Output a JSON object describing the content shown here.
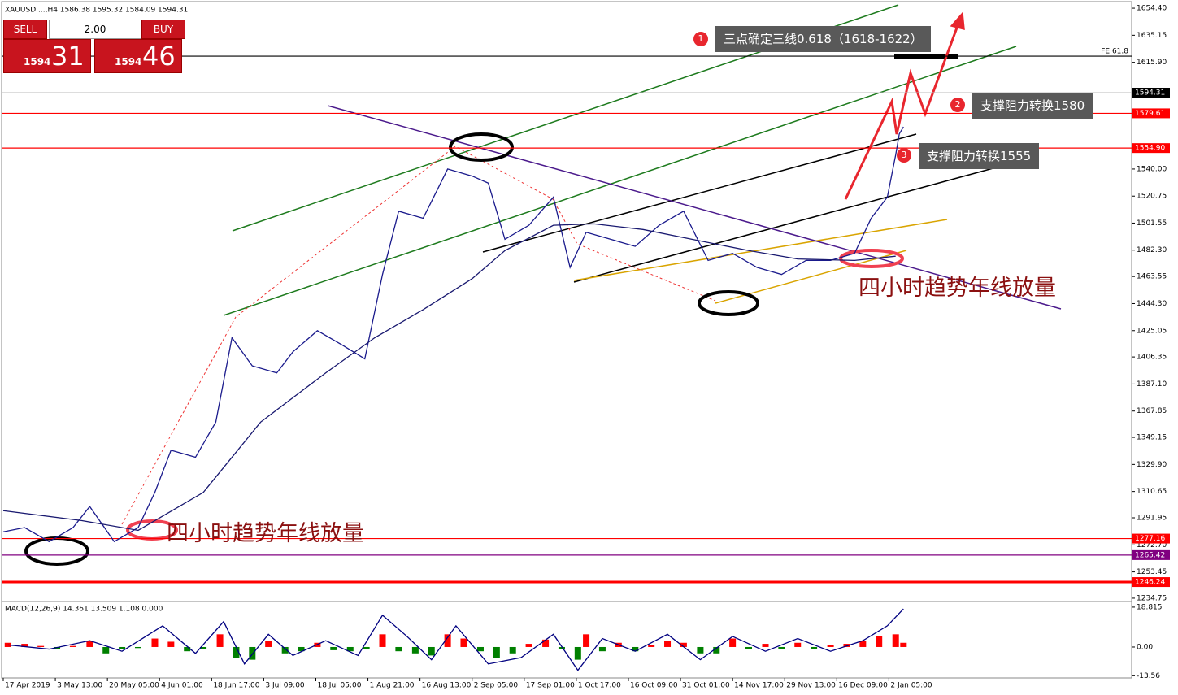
{
  "trade_panel": {
    "sell": "SELL",
    "buy": "BUY",
    "lot": "2.00",
    "bid_big": "1594",
    "bid_small": "31",
    "ask_big": "1594",
    "ask_small": "46"
  },
  "annotations": [
    {
      "number": "1",
      "text": "三点确定三线0.618（1618-1622）"
    },
    {
      "number": "2",
      "text": "支撑阻力转换1580"
    },
    {
      "number": "3",
      "text": "支撑阻力转换1555"
    }
  ],
  "labels": [
    "四小时趋势年线放量",
    "四小时趋势年线放量"
  ],
  "chart_data": [
    {
      "type": "line",
      "title": "XAUUSD....,H4  1586.38 1595.32 1584.09 1594.31",
      "xlim": [
        0,
        21.66
      ],
      "ylim": [
        1232.4,
        1657.9
      ],
      "xticks": [
        {
          "value": 0,
          "label": "17 Apr 2019"
        },
        {
          "value": 1,
          "label": "3 May 13:00"
        },
        {
          "value": 2,
          "label": "20 May 05:00"
        },
        {
          "value": 3,
          "label": "4 Jun 01:00"
        },
        {
          "value": 4,
          "label": "18 Jun 17:00"
        },
        {
          "value": 5,
          "label": "3 Jul 09:00"
        },
        {
          "value": 6,
          "label": "18 Jul 05:00"
        },
        {
          "value": 7,
          "label": "1 Aug 21:00"
        },
        {
          "value": 8,
          "label": "16 Aug 13:00"
        },
        {
          "value": 9,
          "label": "2 Sep 05:00"
        },
        {
          "value": 10,
          "label": "17 Sep 01:00"
        },
        {
          "value": 11,
          "label": "1 Oct 17:00"
        },
        {
          "value": 12,
          "label": "16 Oct 09:00"
        },
        {
          "value": 13,
          "label": "31 Oct 01:00"
        },
        {
          "value": 14,
          "label": "14 Nov 17:00"
        },
        {
          "value": 15,
          "label": "29 Nov 13:00"
        },
        {
          "value": 16,
          "label": "16 Dec 09:00"
        },
        {
          "value": 17,
          "label": "2 Jan 05:00"
        }
      ],
      "yticks": [
        {
          "value": 1654.4,
          "label": "1654.40"
        },
        1635.15,
        {
          "value": 1615.9,
          "label": "1615.90"
        },
        {
          "value": 1540,
          "label": "1540.00"
        },
        1520.75,
        1501.55,
        {
          "value": 1482.3,
          "label": "1482.30"
        },
        1463.55,
        {
          "value": 1444.3,
          "label": "1444.30"
        },
        1425.05,
        1406.35,
        {
          "value": 1387.1,
          "label": "1387.10"
        },
        1367.85,
        1349.15,
        {
          "value": 1329.9,
          "label": "1329.90"
        },
        1310.65,
        1291.95,
        {
          "value": 1272.7,
          "label": "1272.70"
        },
        1253.45,
        1234.75
      ],
      "series": [
        {
          "name": "XAUUSD",
          "color": "#1a1a8c",
          "x": [
            0,
            0.41,
            0.88,
            1.34,
            1.66,
            2.13,
            2.59,
            2.91,
            3.22,
            3.69,
            4.08,
            4.39,
            4.78,
            5.25,
            5.56,
            6.03,
            6.5,
            6.94,
            7.28,
            7.59,
            8.06,
            8.53,
            9,
            9.31,
            9.63,
            10.09,
            10.56,
            10.88,
            11.19,
            11.66,
            12.13,
            12.59,
            13.06,
            13.53,
            14,
            14.47,
            14.94,
            15.41,
            15.88,
            16.34,
            16.66,
            16.97,
            17.13,
            17.2,
            17.28
          ],
          "values": [
            1282,
            1285,
            1275,
            1285,
            1300,
            1275,
            1285,
            1310,
            1340,
            1335,
            1360,
            1420,
            1400,
            1395,
            1410,
            1425,
            1415,
            1405,
            1465,
            1510,
            1505,
            1540,
            1535,
            1530,
            1490,
            1500,
            1520,
            1470,
            1495,
            1490,
            1485,
            1500,
            1510,
            1475,
            1480,
            1470,
            1465,
            1475,
            1475,
            1480,
            1505,
            1520,
            1550,
            1565,
            1570
          ]
        },
        {
          "name": "MA",
          "color": "#191970",
          "x": [
            0,
            1.5,
            2.59,
            3.84,
            4.94,
            6.19,
            7.13,
            8.06,
            9,
            9.63,
            10.56,
            11.34,
            12.28,
            13.22,
            14.31,
            15.25,
            16.34,
            17.13
          ],
          "values": [
            1297,
            1290,
            1283,
            1310,
            1360,
            1395,
            1420,
            1440,
            1462,
            1482,
            1500,
            1501,
            1497,
            1490,
            1482,
            1476,
            1475,
            1478
          ]
        }
      ],
      "current_price": 1594.31,
      "levels": [
        {
          "value": 1579.61,
          "color": "#ff0000"
        },
        {
          "value": 1554.9,
          "label": "1554.90",
          "color": "#ff0000"
        },
        {
          "value": 1277.16,
          "color": "#ff0000"
        },
        {
          "value": 1265.42,
          "color": "#800080"
        },
        {
          "value": 1246.24,
          "color": "#ff0000"
        },
        {
          "value": 1620.3,
          "label": "FE 61.8",
          "color": "#000000"
        }
      ]
    },
    {
      "type": "bar",
      "title": "MACD(12,26,9) 14.361 13.509 1.108 0.000",
      "xlim": [
        0,
        21.66
      ],
      "ylim": [
        -14.2,
        20.7
      ],
      "yticks": [
        18.815,
        {
          "value": 0,
          "label": "0.00"
        },
        -13.56
      ],
      "color": "#ff0000",
      "negative_color": "#008000",
      "x": [
        0.09,
        0.41,
        0.72,
        1.03,
        1.34,
        1.66,
        1.97,
        2.28,
        2.59,
        2.91,
        3.22,
        3.53,
        3.84,
        4.16,
        4.47,
        4.78,
        5.09,
        5.41,
        5.72,
        6.03,
        6.34,
        6.66,
        6.97,
        7.28,
        7.59,
        7.91,
        8.22,
        8.53,
        8.84,
        9.16,
        9.47,
        9.78,
        10.09,
        10.41,
        10.72,
        11.03,
        11.19,
        11.5,
        11.81,
        12.13,
        12.44,
        12.75,
        13.06,
        13.38,
        13.69,
        14,
        14.31,
        14.63,
        14.94,
        15.25,
        15.56,
        15.88,
        16.19,
        16.5,
        16.81,
        17.13,
        17.28
      ],
      "values": [
        2,
        1.5,
        0.5,
        -1,
        0.5,
        3,
        -3,
        -1,
        -0.5,
        4,
        2.5,
        -2,
        -1,
        6,
        -5,
        -6,
        3,
        -3,
        -2,
        2,
        -1.5,
        -2,
        -1,
        6,
        -2,
        -3,
        -4,
        6,
        4,
        -2,
        -5,
        -3,
        1.5,
        3.5,
        -1,
        -6,
        6,
        -2,
        2,
        -2,
        1,
        3,
        2,
        -3,
        -3,
        4,
        -1,
        1.5,
        -1,
        2,
        -1,
        1,
        1.5,
        3,
        5,
        6,
        2
      ],
      "line": {
        "color": "#000080",
        "x": [
          0.09,
          0.88,
          1.66,
          2.28,
          3.06,
          3.69,
          4.23,
          4.63,
          5.09,
          5.56,
          6.19,
          6.81,
          7.28,
          7.75,
          8.22,
          8.69,
          9.31,
          9.94,
          10.56,
          11.03,
          11.5,
          12.13,
          12.75,
          13.38,
          14,
          14.63,
          15.25,
          15.88,
          16.5,
          16.97,
          17.28
        ],
        "values": [
          1,
          -1,
          3,
          -2,
          10,
          -3,
          12,
          -8,
          6,
          -4,
          3,
          -4,
          15,
          5,
          -6,
          10,
          -8,
          -5,
          6,
          -11,
          4,
          -2,
          6,
          -6,
          5,
          -2,
          4,
          -2,
          3,
          10,
          18
        ]
      }
    }
  ]
}
